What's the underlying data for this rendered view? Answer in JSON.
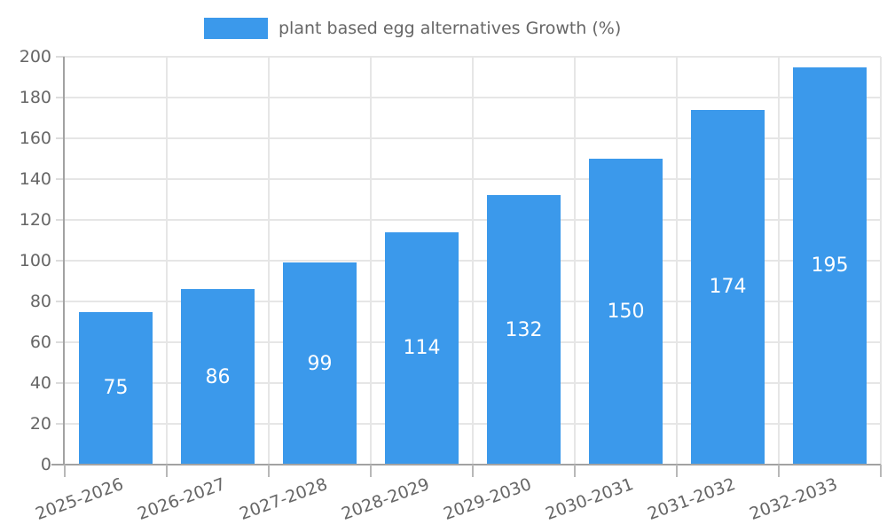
{
  "chart_data": {
    "type": "bar",
    "legend_label": "plant based egg alternatives Growth (%)",
    "categories": [
      "2025-2026",
      "2026-2027",
      "2027-2028",
      "2028-2029",
      "2029-2030",
      "2030-2031",
      "2031-2032",
      "2032-2033"
    ],
    "values": [
      75,
      86,
      99,
      114,
      132,
      150,
      174,
      195
    ],
    "ylim": [
      0,
      200
    ],
    "ytick_step": 20,
    "ytick_labels": [
      0,
      20,
      40,
      60,
      80,
      100,
      120,
      140,
      160,
      180,
      200
    ],
    "grid": true,
    "legend_position": "top",
    "xlabel": "",
    "ylabel": "",
    "bar_color": "#3b99eb",
    "value_label_color": "#ffffff",
    "text_color": "#666666",
    "grid_color": "#e6e6e6",
    "axis_color": "#a2a2a2"
  }
}
